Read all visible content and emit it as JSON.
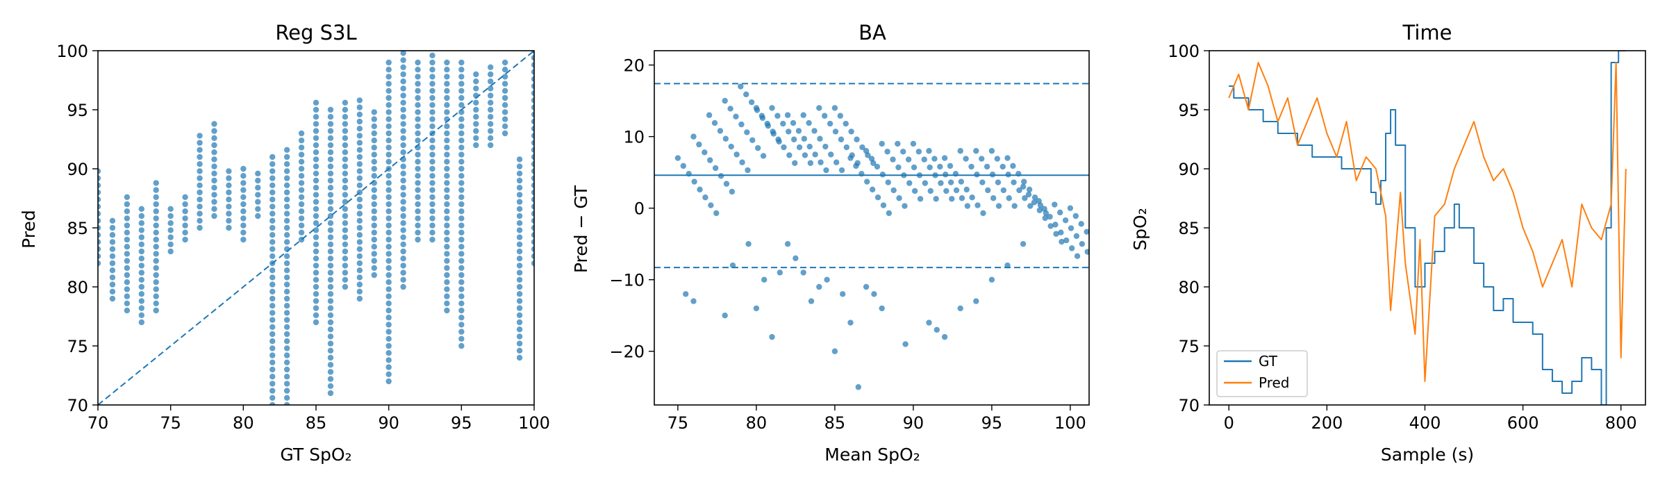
{
  "colors": {
    "blue": "#1f77b4",
    "orange": "#ff7f0e"
  },
  "chart_data": [
    {
      "type": "scatter",
      "title": "Reg S3L",
      "xlabel": "GT SpO₂",
      "ylabel": "Pred",
      "xlim": [
        70,
        100
      ],
      "ylim": [
        70,
        100
      ],
      "xticks": [
        70,
        75,
        80,
        85,
        90,
        95,
        100
      ],
      "yticks": [
        70,
        75,
        80,
        85,
        90,
        95,
        100
      ],
      "grid": false,
      "reference_line": {
        "style": "dashed",
        "from": [
          70,
          70
        ],
        "to": [
          100,
          100
        ]
      },
      "columns": [
        {
          "x": 70,
          "ymin": 82,
          "ymax": 90
        },
        {
          "x": 71,
          "ymin": 79,
          "ymax": 86
        },
        {
          "x": 72,
          "ymin": 78,
          "ymax": 88
        },
        {
          "x": 73,
          "ymin": 77,
          "ymax": 87
        },
        {
          "x": 74,
          "ymin": 78,
          "ymax": 89
        },
        {
          "x": 75,
          "ymin": 83,
          "ymax": 87
        },
        {
          "x": 76,
          "ymin": 84,
          "ymax": 88
        },
        {
          "x": 77,
          "ymin": 85,
          "ymax": 93
        },
        {
          "x": 78,
          "ymin": 86,
          "ymax": 94
        },
        {
          "x": 79,
          "ymin": 85,
          "ymax": 90
        },
        {
          "x": 80,
          "ymin": 84,
          "ymax": 90
        },
        {
          "x": 81,
          "ymin": 86,
          "ymax": 90
        },
        {
          "x": 82,
          "ymin": 70,
          "ymax": 91
        },
        {
          "x": 83,
          "ymin": 70,
          "ymax": 92
        },
        {
          "x": 84,
          "ymin": 84,
          "ymax": 93
        },
        {
          "x": 85,
          "ymin": 77,
          "ymax": 96
        },
        {
          "x": 86,
          "ymin": 71,
          "ymax": 95
        },
        {
          "x": 87,
          "ymin": 80,
          "ymax": 96
        },
        {
          "x": 88,
          "ymin": 79,
          "ymax": 96
        },
        {
          "x": 89,
          "ymin": 81,
          "ymax": 95
        },
        {
          "x": 90,
          "ymin": 72,
          "ymax": 99
        },
        {
          "x": 91,
          "ymin": 80,
          "ymax": 100
        },
        {
          "x": 92,
          "ymin": 84,
          "ymax": 99
        },
        {
          "x": 93,
          "ymin": 84,
          "ymax": 100
        },
        {
          "x": 94,
          "ymin": 78,
          "ymax": 99
        },
        {
          "x": 95,
          "ymin": 75,
          "ymax": 99
        },
        {
          "x": 96,
          "ymin": 92,
          "ymax": 98
        },
        {
          "x": 97,
          "ymin": 92,
          "ymax": 99
        },
        {
          "x": 98,
          "ymin": 93,
          "ymax": 99
        },
        {
          "x": 99,
          "ymin": 74,
          "ymax": 91
        },
        {
          "x": 100,
          "ymin": 82,
          "ymax": 100
        }
      ]
    },
    {
      "type": "scatter",
      "title": "BA",
      "xlabel": "Mean SpO₂",
      "ylabel": "Pred − GT",
      "xlim": [
        73.5,
        101.2
      ],
      "ylim": [
        -27.5,
        22
      ],
      "xticks": [
        75,
        80,
        85,
        90,
        95,
        100
      ],
      "yticks": [
        -20,
        -10,
        0,
        10,
        20
      ],
      "grid": false,
      "mean_line": 4.6,
      "limits_of_agreement": [
        17.4,
        -8.3
      ],
      "band_points": [
        {
          "x": 75.0,
          "y": 7
        },
        {
          "x": 76.0,
          "y": 10
        },
        {
          "x": 77.0,
          "y": 13
        },
        {
          "x": 78.0,
          "y": 15
        },
        {
          "x": 79.0,
          "y": 17
        },
        {
          "x": 80.0,
          "y": 14
        },
        {
          "x": 81.0,
          "y": 14
        },
        {
          "x": 82.0,
          "y": 13
        },
        {
          "x": 83.0,
          "y": 13
        },
        {
          "x": 84.0,
          "y": 14
        },
        {
          "x": 85.0,
          "y": 14
        },
        {
          "x": 86.0,
          "y": 7
        },
        {
          "x": 87.0,
          "y": 8
        },
        {
          "x": 88.0,
          "y": 9
        },
        {
          "x": 89.0,
          "y": 9
        },
        {
          "x": 90.0,
          "y": 9
        },
        {
          "x": 91.0,
          "y": 8
        },
        {
          "x": 92.0,
          "y": 7
        },
        {
          "x": 93.0,
          "y": 8
        },
        {
          "x": 94.0,
          "y": 8
        },
        {
          "x": 95.0,
          "y": 8
        },
        {
          "x": 96.0,
          "y": 7
        },
        {
          "x": 97.0,
          "y": 3
        },
        {
          "x": 98.0,
          "y": 1
        },
        {
          "x": 99.0,
          "y": 0.5
        },
        {
          "x": 100.0,
          "y": 0
        }
      ],
      "outliers": [
        {
          "x": 75.5,
          "y": -12
        },
        {
          "x": 76.0,
          "y": -13
        },
        {
          "x": 78.0,
          "y": -15
        },
        {
          "x": 78.5,
          "y": -8
        },
        {
          "x": 79.5,
          "y": -5
        },
        {
          "x": 80.0,
          "y": -14
        },
        {
          "x": 80.5,
          "y": -10
        },
        {
          "x": 81.0,
          "y": -18
        },
        {
          "x": 81.5,
          "y": -9
        },
        {
          "x": 82.0,
          "y": -5
        },
        {
          "x": 82.5,
          "y": -7
        },
        {
          "x": 83.0,
          "y": -9
        },
        {
          "x": 83.5,
          "y": -13
        },
        {
          "x": 84.0,
          "y": -11
        },
        {
          "x": 84.5,
          "y": -10
        },
        {
          "x": 85.0,
          "y": -20
        },
        {
          "x": 85.5,
          "y": -12
        },
        {
          "x": 86.0,
          "y": -16
        },
        {
          "x": 86.5,
          "y": -25
        },
        {
          "x": 87.0,
          "y": -11
        },
        {
          "x": 87.5,
          "y": -12
        },
        {
          "x": 88.0,
          "y": -14
        },
        {
          "x": 89.5,
          "y": -19
        },
        {
          "x": 91.0,
          "y": -16
        },
        {
          "x": 91.5,
          "y": -17
        },
        {
          "x": 92.0,
          "y": -18
        },
        {
          "x": 93.0,
          "y": -14
        },
        {
          "x": 94.0,
          "y": -13
        },
        {
          "x": 95.0,
          "y": -10
        },
        {
          "x": 96.0,
          "y": -8
        },
        {
          "x": 97.0,
          "y": -5
        }
      ]
    },
    {
      "type": "line",
      "title": "Time",
      "xlabel": "Sample (s)",
      "ylabel": "SpO₂",
      "xlim": [
        -40,
        850
      ],
      "ylim": [
        70,
        100
      ],
      "xticks": [
        0,
        200,
        400,
        600,
        800
      ],
      "yticks": [
        70,
        75,
        80,
        85,
        90,
        95,
        100
      ],
      "grid": false,
      "legend_position": "lower-left",
      "series": [
        {
          "name": "GT",
          "color": "#1f77b4",
          "points": [
            [
              0,
              97
            ],
            [
              10,
              96
            ],
            [
              30,
              96
            ],
            [
              40,
              95
            ],
            [
              60,
              95
            ],
            [
              70,
              94
            ],
            [
              90,
              94
            ],
            [
              100,
              93
            ],
            [
              130,
              93
            ],
            [
              140,
              92
            ],
            [
              160,
              92
            ],
            [
              170,
              91
            ],
            [
              220,
              91
            ],
            [
              230,
              90
            ],
            [
              280,
              90
            ],
            [
              290,
              88
            ],
            [
              300,
              87
            ],
            [
              310,
              89
            ],
            [
              320,
              93
            ],
            [
              330,
              95
            ],
            [
              340,
              92
            ],
            [
              360,
              85
            ],
            [
              380,
              80
            ],
            [
              400,
              82
            ],
            [
              420,
              83
            ],
            [
              440,
              85
            ],
            [
              460,
              87
            ],
            [
              470,
              85
            ],
            [
              500,
              82
            ],
            [
              520,
              80
            ],
            [
              540,
              78
            ],
            [
              560,
              79
            ],
            [
              580,
              77
            ],
            [
              600,
              77
            ],
            [
              620,
              76
            ],
            [
              640,
              73
            ],
            [
              660,
              72
            ],
            [
              680,
              71
            ],
            [
              700,
              72
            ],
            [
              720,
              74
            ],
            [
              740,
              73
            ],
            [
              760,
              70
            ],
            [
              770,
              85
            ],
            [
              780,
              99
            ],
            [
              795,
              100
            ],
            [
              810,
              100
            ]
          ]
        },
        {
          "name": "Pred",
          "color": "#ff7f0e",
          "points": [
            [
              0,
              96
            ],
            [
              20,
              98
            ],
            [
              40,
              95
            ],
            [
              60,
              99
            ],
            [
              80,
              97
            ],
            [
              100,
              94
            ],
            [
              120,
              96
            ],
            [
              140,
              92
            ],
            [
              160,
              94
            ],
            [
              180,
              96
            ],
            [
              200,
              93
            ],
            [
              220,
              91
            ],
            [
              240,
              94
            ],
            [
              260,
              89
            ],
            [
              280,
              91
            ],
            [
              300,
              90
            ],
            [
              320,
              86
            ],
            [
              330,
              78
            ],
            [
              350,
              88
            ],
            [
              360,
              82
            ],
            [
              380,
              76
            ],
            [
              390,
              84
            ],
            [
              400,
              72
            ],
            [
              420,
              86
            ],
            [
              440,
              87
            ],
            [
              460,
              90
            ],
            [
              480,
              92
            ],
            [
              500,
              94
            ],
            [
              520,
              91
            ],
            [
              540,
              89
            ],
            [
              560,
              90
            ],
            [
              580,
              88
            ],
            [
              600,
              85
            ],
            [
              620,
              83
            ],
            [
              640,
              80
            ],
            [
              660,
              82
            ],
            [
              680,
              84
            ],
            [
              700,
              80
            ],
            [
              720,
              87
            ],
            [
              740,
              85
            ],
            [
              760,
              84
            ],
            [
              780,
              87
            ],
            [
              790,
              99
            ],
            [
              800,
              74
            ],
            [
              810,
              90
            ]
          ]
        }
      ]
    }
  ]
}
